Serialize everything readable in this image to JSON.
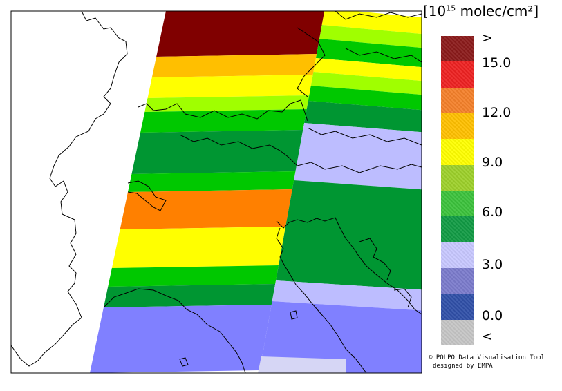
{
  "unit_label": {
    "prefix": "[10",
    "exponent": "15",
    "suffix": " molec/cm²]"
  },
  "legend": {
    "bins": [
      {
        "color": "#8b1a1a"
      },
      {
        "color": "#ee2222"
      },
      {
        "color": "#f4802a"
      },
      {
        "color": "#ffc000"
      },
      {
        "color": "#ffff00"
      },
      {
        "color": "#9dd02a"
      },
      {
        "color": "#3cc23c"
      },
      {
        "color": "#119b44"
      },
      {
        "color": "#c8c8ff"
      },
      {
        "color": "#7b7bcc"
      },
      {
        "color": "#3050a8"
      },
      {
        "color": "#c6c6c6"
      }
    ],
    "labels": [
      ">",
      "15.0",
      "12.0",
      "9.0",
      "6.0",
      "3.0",
      "0.0",
      "<"
    ]
  },
  "credit": {
    "line1": "© POLPO Data Visualisation Tool",
    "line2": "designed by EMPA"
  },
  "palette": {
    "dark_red": "#800000",
    "orange_dark": "#ffbf00",
    "orange": "#ff8000",
    "yellow": "#ffff00",
    "yellow_green": "#a0ff00",
    "green": "#00c800",
    "dark_green": "#009632",
    "light_lavender": "#bdbdff",
    "lavender": "#8080ff",
    "pale_lavender": "#d6d6f5"
  }
}
